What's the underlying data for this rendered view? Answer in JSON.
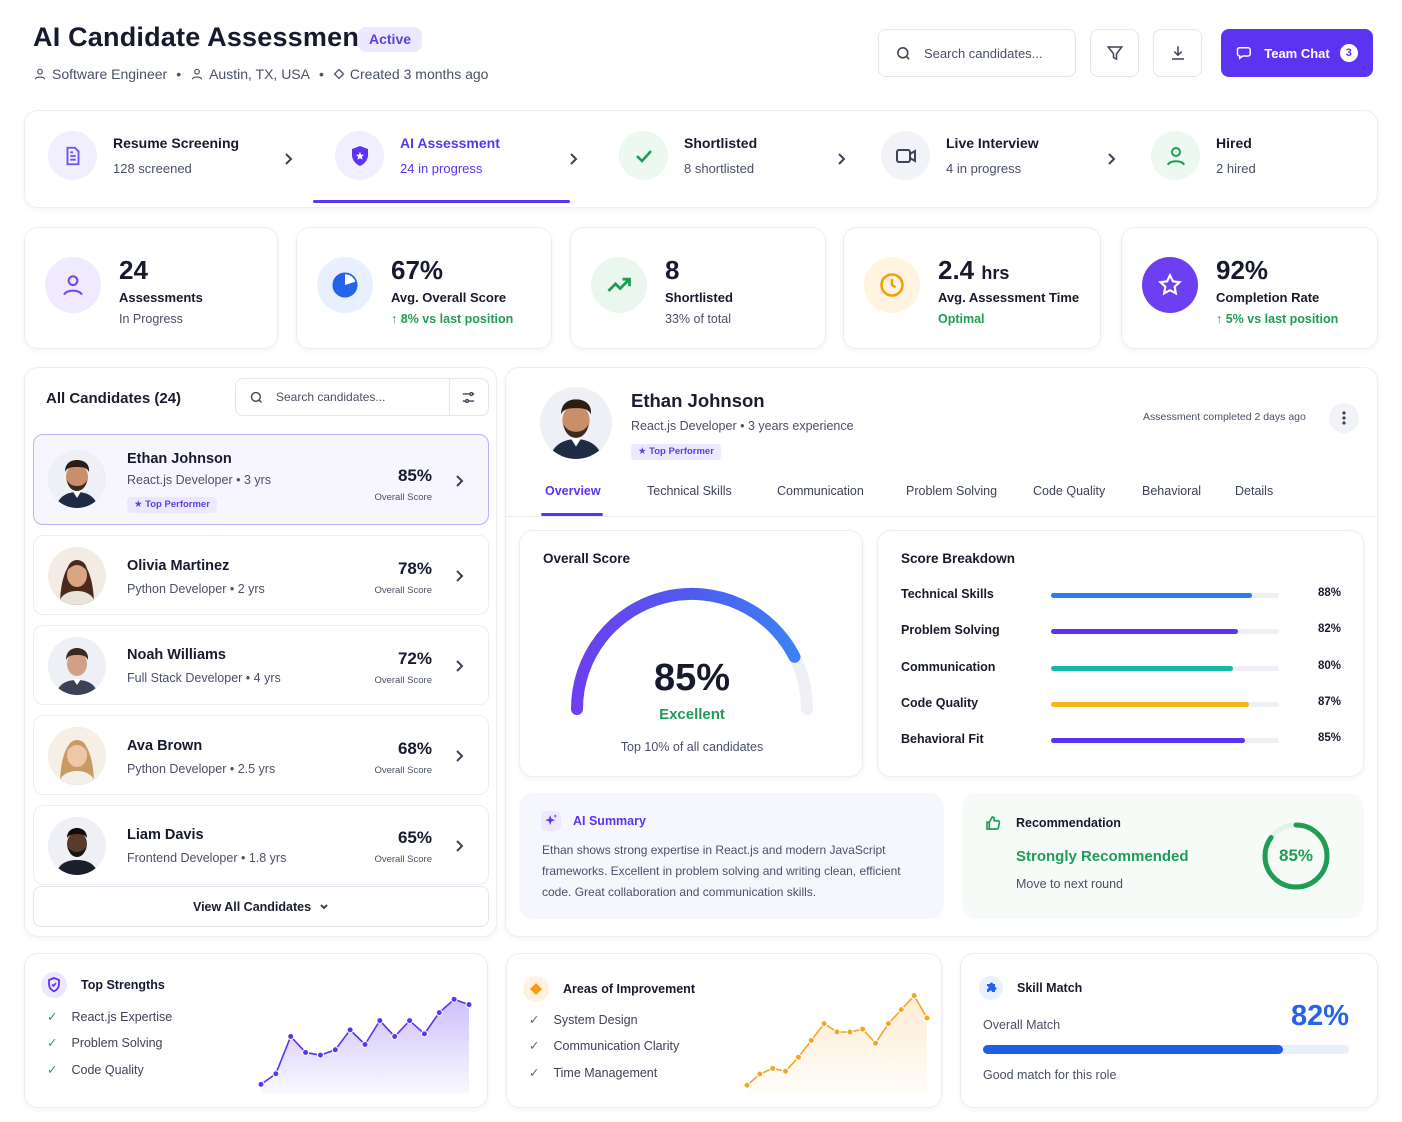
{
  "header": {
    "title": "AI Candidate Assessment",
    "status_badge": "Active",
    "role": "Software Engineer",
    "location": "Austin, TX, USA",
    "created": "Created 3 months ago",
    "search_placeholder": "Search candidates...",
    "team_chat_label": "Team Chat",
    "team_chat_count": "3"
  },
  "pipeline": [
    {
      "title": "Resume Screening",
      "sub": "128 screened",
      "icon": "document-icon",
      "active": false
    },
    {
      "title": "AI Assessment",
      "sub": "24 in progress",
      "icon": "shield-icon",
      "active": true
    },
    {
      "title": "Shortlisted",
      "sub": "8 shortlisted",
      "icon": "check-icon",
      "active": false
    },
    {
      "title": "Live Interview",
      "sub": "4 in progress",
      "icon": "video-camera-icon",
      "active": false
    },
    {
      "title": "Hired",
      "sub": "2 hired",
      "icon": "user-icon",
      "active": false
    }
  ],
  "stats": [
    {
      "value": "24",
      "unit": "",
      "label": "Assessments",
      "sub": "In Progress",
      "icon": "user-icon",
      "color": "#7b5cf0"
    },
    {
      "value": "67%",
      "unit": "",
      "label": "Avg. Overall Score",
      "sub": "8% vs last position",
      "icon": "pie-chart-icon",
      "color": "#2563eb"
    },
    {
      "value": "8",
      "unit": "",
      "label": "Shortlisted",
      "sub": "33% of total",
      "icon": "trending-up-icon",
      "color": "#1f9d55"
    },
    {
      "value": "2.4",
      "unit": "hrs",
      "label": "Avg. Assessment Time",
      "sub": "Optimal",
      "icon": "clock-icon",
      "color": "#f59e0b"
    },
    {
      "value": "92%",
      "unit": "",
      "label": "Completion Rate",
      "sub": "5% vs last position",
      "icon": "star-icon",
      "color": "#6d3ff0"
    }
  ],
  "candidates_panel": {
    "title": "All Candidates (24)",
    "search_placeholder": "Search candidates...",
    "view_all": "View All Candidates",
    "score_caption": "Overall Score",
    "items": [
      {
        "name": "Ethan Johnson",
        "role": "React.js Developer",
        "exp": "3 yrs",
        "score": "85%",
        "badge": "Top Performer"
      },
      {
        "name": "Olivia Martinez",
        "role": "Python Developer",
        "exp": "2 yrs",
        "score": "78%"
      },
      {
        "name": "Noah Williams",
        "role": "Full Stack Developer",
        "exp": "4 yrs",
        "score": "72%"
      },
      {
        "name": "Ava Brown",
        "role": "Python Developer",
        "exp": "2.5 yrs",
        "score": "68%"
      },
      {
        "name": "Liam Davis",
        "role": "Frontend Developer",
        "exp": "1.8 yrs",
        "score": "65%"
      }
    ]
  },
  "detail": {
    "name": "Ethan Johnson",
    "role": "React.js Developer",
    "experience": "3 years experience",
    "badge": "Top Performer",
    "completed": "Assessment completed 2 days ago",
    "tabs": [
      "Overview",
      "Technical Skills",
      "Communication",
      "Problem Solving",
      "Code Quality",
      "Behavioral",
      "Details"
    ],
    "overall": {
      "title": "Overall Score",
      "value": "85%",
      "score": 85,
      "label": "Excellent",
      "sub": "Top 10% of all candidates"
    },
    "breakdown": {
      "title": "Score Breakdown",
      "rows": [
        {
          "label": "Technical Skills",
          "value": "88%",
          "pct": 88,
          "color": "#2f7be8"
        },
        {
          "label": "Problem Solving",
          "value": "82%",
          "pct": 82,
          "color": "#5b33f0"
        },
        {
          "label": "Communication",
          "value": "80%",
          "pct": 80,
          "color": "#14b8a6"
        },
        {
          "label": "Code Quality",
          "value": "87%",
          "pct": 87,
          "color": "#f5b516"
        },
        {
          "label": "Behavioral Fit",
          "value": "85%",
          "pct": 85,
          "color": "#5b33f0"
        }
      ]
    },
    "ai_summary": {
      "title": "AI Summary",
      "body": "Ethan shows strong expertise in React.js and modern JavaScript frameworks. Excellent in problem solving and writing clean, efficient code. Great collaboration and communication skills."
    },
    "recommendation": {
      "title": "Recommendation",
      "verdict": "Strongly Recommended",
      "next": "Move to next round",
      "score": "85%",
      "pct": 85
    }
  },
  "bottom": {
    "strengths": {
      "title": "Top Strengths",
      "items": [
        "React.js Expertise",
        "Problem Solving",
        "Code Quality"
      ],
      "trend": [
        2,
        10,
        38,
        26,
        24,
        28,
        43,
        32,
        50,
        38,
        50,
        40,
        56,
        66,
        62
      ]
    },
    "improvement": {
      "title": "Areas of Improvement",
      "items": [
        "System Design",
        "Communication Clarity",
        "Time Management"
      ],
      "trend": [
        2,
        10,
        14,
        12,
        22,
        34,
        46,
        40,
        40,
        42,
        32,
        46,
        56,
        66,
        50
      ]
    },
    "skill_match": {
      "title": "Skill Match",
      "label": "Overall Match",
      "value": "82%",
      "pct": 82,
      "sub": "Good match for this role"
    }
  }
}
